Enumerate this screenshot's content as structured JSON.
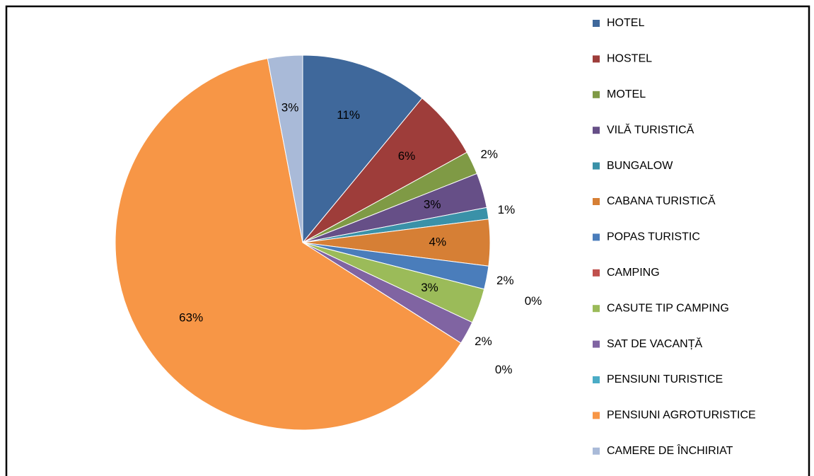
{
  "chart_data": {
    "type": "pie",
    "labels": [
      "HOTEL",
      "HOSTEL",
      "MOTEL",
      "VILĂ TURISTICĂ",
      "BUNGALOW",
      "CABANA TURISTICĂ",
      "POPAS TURISTIC",
      "CAMPING",
      "CASUTE TIP CAMPING",
      "SAT DE VACANȚĂ",
      "PENSIUNI TURISTICE",
      "PENSIUNI AGROTURISTICE",
      "CAMERE DE ÎNCHIRIAT"
    ],
    "values": [
      11,
      6,
      2,
      3,
      1,
      4,
      2,
      0,
      3,
      2,
      0,
      63,
      3
    ],
    "value_labels": [
      "11%",
      "6%",
      "2%",
      "3%",
      "1%",
      "4%",
      "2%",
      "0%",
      "3%",
      "2%",
      "0%",
      "63%",
      "3%"
    ],
    "colors": [
      "#3f689b",
      "#9e3d3a",
      "#7f9a45",
      "#664f87",
      "#3a91a8",
      "#d67f35",
      "#4a7dbb",
      "#c0504d",
      "#9bbb59",
      "#8064a2",
      "#4bacc6",
      "#f79646",
      "#a9bad8"
    ],
    "legend": "right"
  }
}
